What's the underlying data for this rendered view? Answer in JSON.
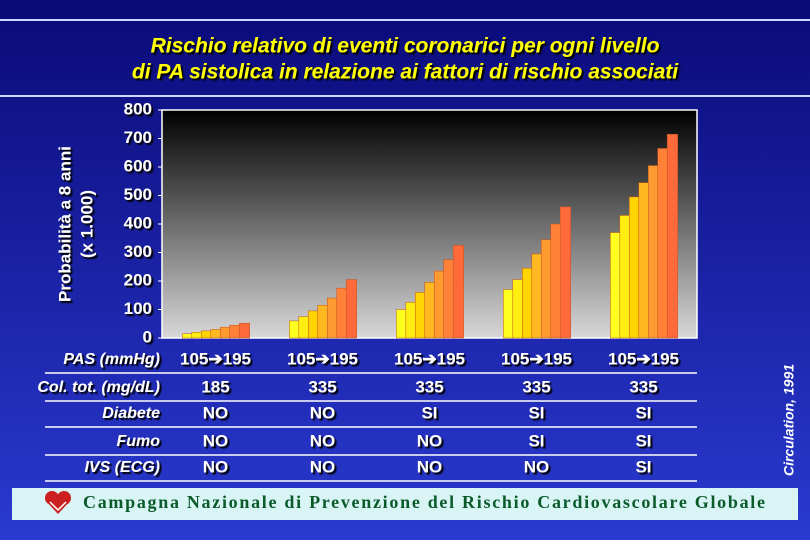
{
  "chart_data": {
    "type": "bar",
    "title_lines": [
      "Rischio relativo di eventi coronarici per ogni livello",
      "di PA sistolica in relazione ai fattori di rischio associati"
    ],
    "ylabel_lines": [
      "Probabilità a 8 anni",
      "(x 1.000)"
    ],
    "categories": [
      null,
      null,
      null,
      null,
      null
    ],
    "series": [
      {
        "color": "#ffff20",
        "values": [
          15,
          60,
          100,
          170,
          370
        ]
      },
      {
        "color": "#ffee10",
        "values": [
          20,
          75,
          125,
          205,
          430
        ]
      },
      {
        "color": "#ffd400",
        "values": [
          25,
          95,
          160,
          245,
          495
        ]
      },
      {
        "color": "#ffb820",
        "values": [
          30,
          115,
          195,
          295,
          545
        ]
      },
      {
        "color": "#ff9a30",
        "values": [
          38,
          140,
          235,
          345,
          605
        ]
      },
      {
        "color": "#ff8036",
        "values": [
          45,
          175,
          275,
          400,
          665
        ]
      },
      {
        "color": "#ff6a3a",
        "values": [
          52,
          205,
          325,
          460,
          715
        ]
      }
    ],
    "ylim": [
      0,
      800
    ],
    "yticks": [
      0,
      100,
      200,
      300,
      400,
      500,
      600,
      700,
      800
    ]
  },
  "table": {
    "row_labels": [
      "PAS (mmHg)",
      "Col. tot. (mg/dL)",
      "Diabete",
      "Fumo",
      "IVS (ECG)"
    ],
    "rows": [
      [
        "105➔195",
        "105➔195",
        "105➔195",
        "105➔195",
        "105➔195"
      ],
      [
        "185",
        "335",
        "335",
        "335",
        "335"
      ],
      [
        "NO",
        "NO",
        "SI",
        "SI",
        "SI"
      ],
      [
        "NO",
        "NO",
        "NO",
        "SI",
        "SI"
      ],
      [
        "NO",
        "NO",
        "NO",
        "NO",
        "SI"
      ]
    ]
  },
  "source": "Circulation, 1991",
  "footer": "Campagna Nazionale di Prevenzione del Rischio Cardiovascolare Globale"
}
